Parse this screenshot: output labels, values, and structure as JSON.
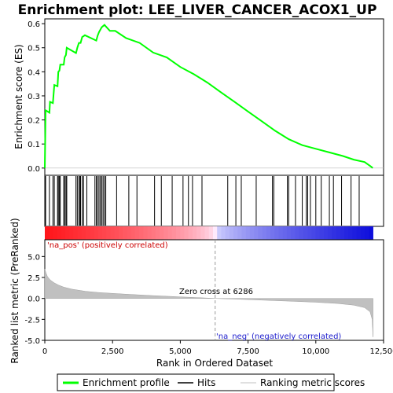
{
  "chart_data": {
    "type": "line",
    "title": "Enrichment plot: LEE_LIVER_CANCER_ACOX1_UP",
    "top_panel": {
      "ylabel": "Enrichment score (ES)",
      "ylim": [
        -0.03,
        0.62
      ],
      "yticks": [
        "0.0",
        "0.1",
        "0.2",
        "0.3",
        "0.4",
        "0.5",
        "0.6"
      ],
      "ytick_values": [
        0.0,
        0.1,
        0.2,
        0.3,
        0.4,
        0.5,
        0.6
      ],
      "series": [
        {
          "name": "Enrichment profile",
          "color": "#00ff00",
          "points": [
            [
              0,
              0.0
            ],
            [
              30,
              0.24
            ],
            [
              170,
              0.23
            ],
            [
              190,
              0.275
            ],
            [
              300,
              0.27
            ],
            [
              320,
              0.3
            ],
            [
              350,
              0.345
            ],
            [
              470,
              0.34
            ],
            [
              500,
              0.4
            ],
            [
              540,
              0.405
            ],
            [
              570,
              0.43
            ],
            [
              700,
              0.43
            ],
            [
              730,
              0.46
            ],
            [
              780,
              0.47
            ],
            [
              810,
              0.5
            ],
            [
              1150,
              0.478
            ],
            [
              1200,
              0.5
            ],
            [
              1260,
              0.52
            ],
            [
              1320,
              0.52
            ],
            [
              1380,
              0.545
            ],
            [
              1430,
              0.548
            ],
            [
              1480,
              0.552
            ],
            [
              1900,
              0.53
            ],
            [
              1950,
              0.55
            ],
            [
              2000,
              0.565
            ],
            [
              2050,
              0.575
            ],
            [
              2100,
              0.585
            ],
            [
              2200,
              0.595
            ],
            [
              2400,
              0.57
            ],
            [
              2600,
              0.57
            ],
            [
              3000,
              0.54
            ],
            [
              3500,
              0.52
            ],
            [
              4000,
              0.48
            ],
            [
              4500,
              0.46
            ],
            [
              5000,
              0.42
            ],
            [
              5500,
              0.39
            ],
            [
              6000,
              0.355
            ],
            [
              6500,
              0.315
            ],
            [
              7000,
              0.275
            ],
            [
              7500,
              0.235
            ],
            [
              8000,
              0.195
            ],
            [
              8500,
              0.155
            ],
            [
              9000,
              0.12
            ],
            [
              9500,
              0.095
            ],
            [
              10000,
              0.08
            ],
            [
              10500,
              0.065
            ],
            [
              11000,
              0.05
            ],
            [
              11400,
              0.035
            ],
            [
              11800,
              0.025
            ],
            [
              12050,
              0.005
            ],
            [
              12100,
              0.0
            ]
          ]
        }
      ]
    },
    "hits": [
      5,
      30,
      170,
      300,
      350,
      470,
      500,
      540,
      570,
      700,
      730,
      780,
      810,
      1150,
      1200,
      1260,
      1300,
      1320,
      1380,
      1430,
      1550,
      1850,
      1900,
      1950,
      2000,
      2050,
      2100,
      2150,
      2200,
      2250,
      2650,
      3100,
      3400,
      4050,
      4300,
      4700,
      5100,
      5300,
      5450,
      5800,
      6750,
      7050,
      7250,
      7800,
      8400,
      8450,
      8950,
      9000,
      9250,
      9500,
      9650,
      9700,
      9800,
      10000,
      10200,
      10500,
      10650,
      10950,
      11300,
      11600
    ],
    "bottom_panel": {
      "ylabel": "Ranked list metric (PreRanked)",
      "xlabel": "Rank in Ordered Dataset",
      "ylim": [
        -5,
        7
      ],
      "yticks": [
        "5.0",
        "2.5",
        "0.0",
        "-2.5",
        "-5.0"
      ],
      "ytick_values": [
        5.0,
        2.5,
        0.0,
        -2.5,
        -5.0
      ],
      "metric_points": [
        [
          0,
          3.5
        ],
        [
          50,
          3.0
        ],
        [
          100,
          2.6
        ],
        [
          200,
          2.2
        ],
        [
          350,
          1.85
        ],
        [
          500,
          1.6
        ],
        [
          700,
          1.35
        ],
        [
          1000,
          1.1
        ],
        [
          1500,
          0.85
        ],
        [
          2000,
          0.7
        ],
        [
          3000,
          0.5
        ],
        [
          4000,
          0.33
        ],
        [
          5000,
          0.18
        ],
        [
          6000,
          0.04
        ],
        [
          6286,
          0.0
        ],
        [
          7000,
          -0.08
        ],
        [
          8000,
          -0.2
        ],
        [
          9000,
          -0.32
        ],
        [
          10000,
          -0.45
        ],
        [
          10800,
          -0.6
        ],
        [
          11400,
          -0.8
        ],
        [
          11800,
          -1.1
        ],
        [
          12000,
          -1.6
        ],
        [
          12080,
          -2.5
        ],
        [
          12110,
          -4.6
        ]
      ]
    },
    "xlim": [
      0,
      12500
    ],
    "xticks": [
      "0",
      "2,500",
      "5,000",
      "7,500",
      "10,000",
      "12,500"
    ],
    "xtick_values": [
      0,
      2500,
      5000,
      7500,
      10000,
      12500
    ],
    "dataset_size": 12110,
    "zero_cross": 6286,
    "annotations": {
      "pos": "'na_pos' (positively correlated)",
      "neg": "'na_neg' (negatively correlated)",
      "zero_cross": "Zero cross at 6286"
    },
    "legend": [
      {
        "label": "Enrichment profile",
        "color": "#00ff00"
      },
      {
        "label": "Hits",
        "color": "#000000"
      },
      {
        "label": "Ranking metric scores",
        "color": "#c0c0c0"
      }
    ]
  }
}
